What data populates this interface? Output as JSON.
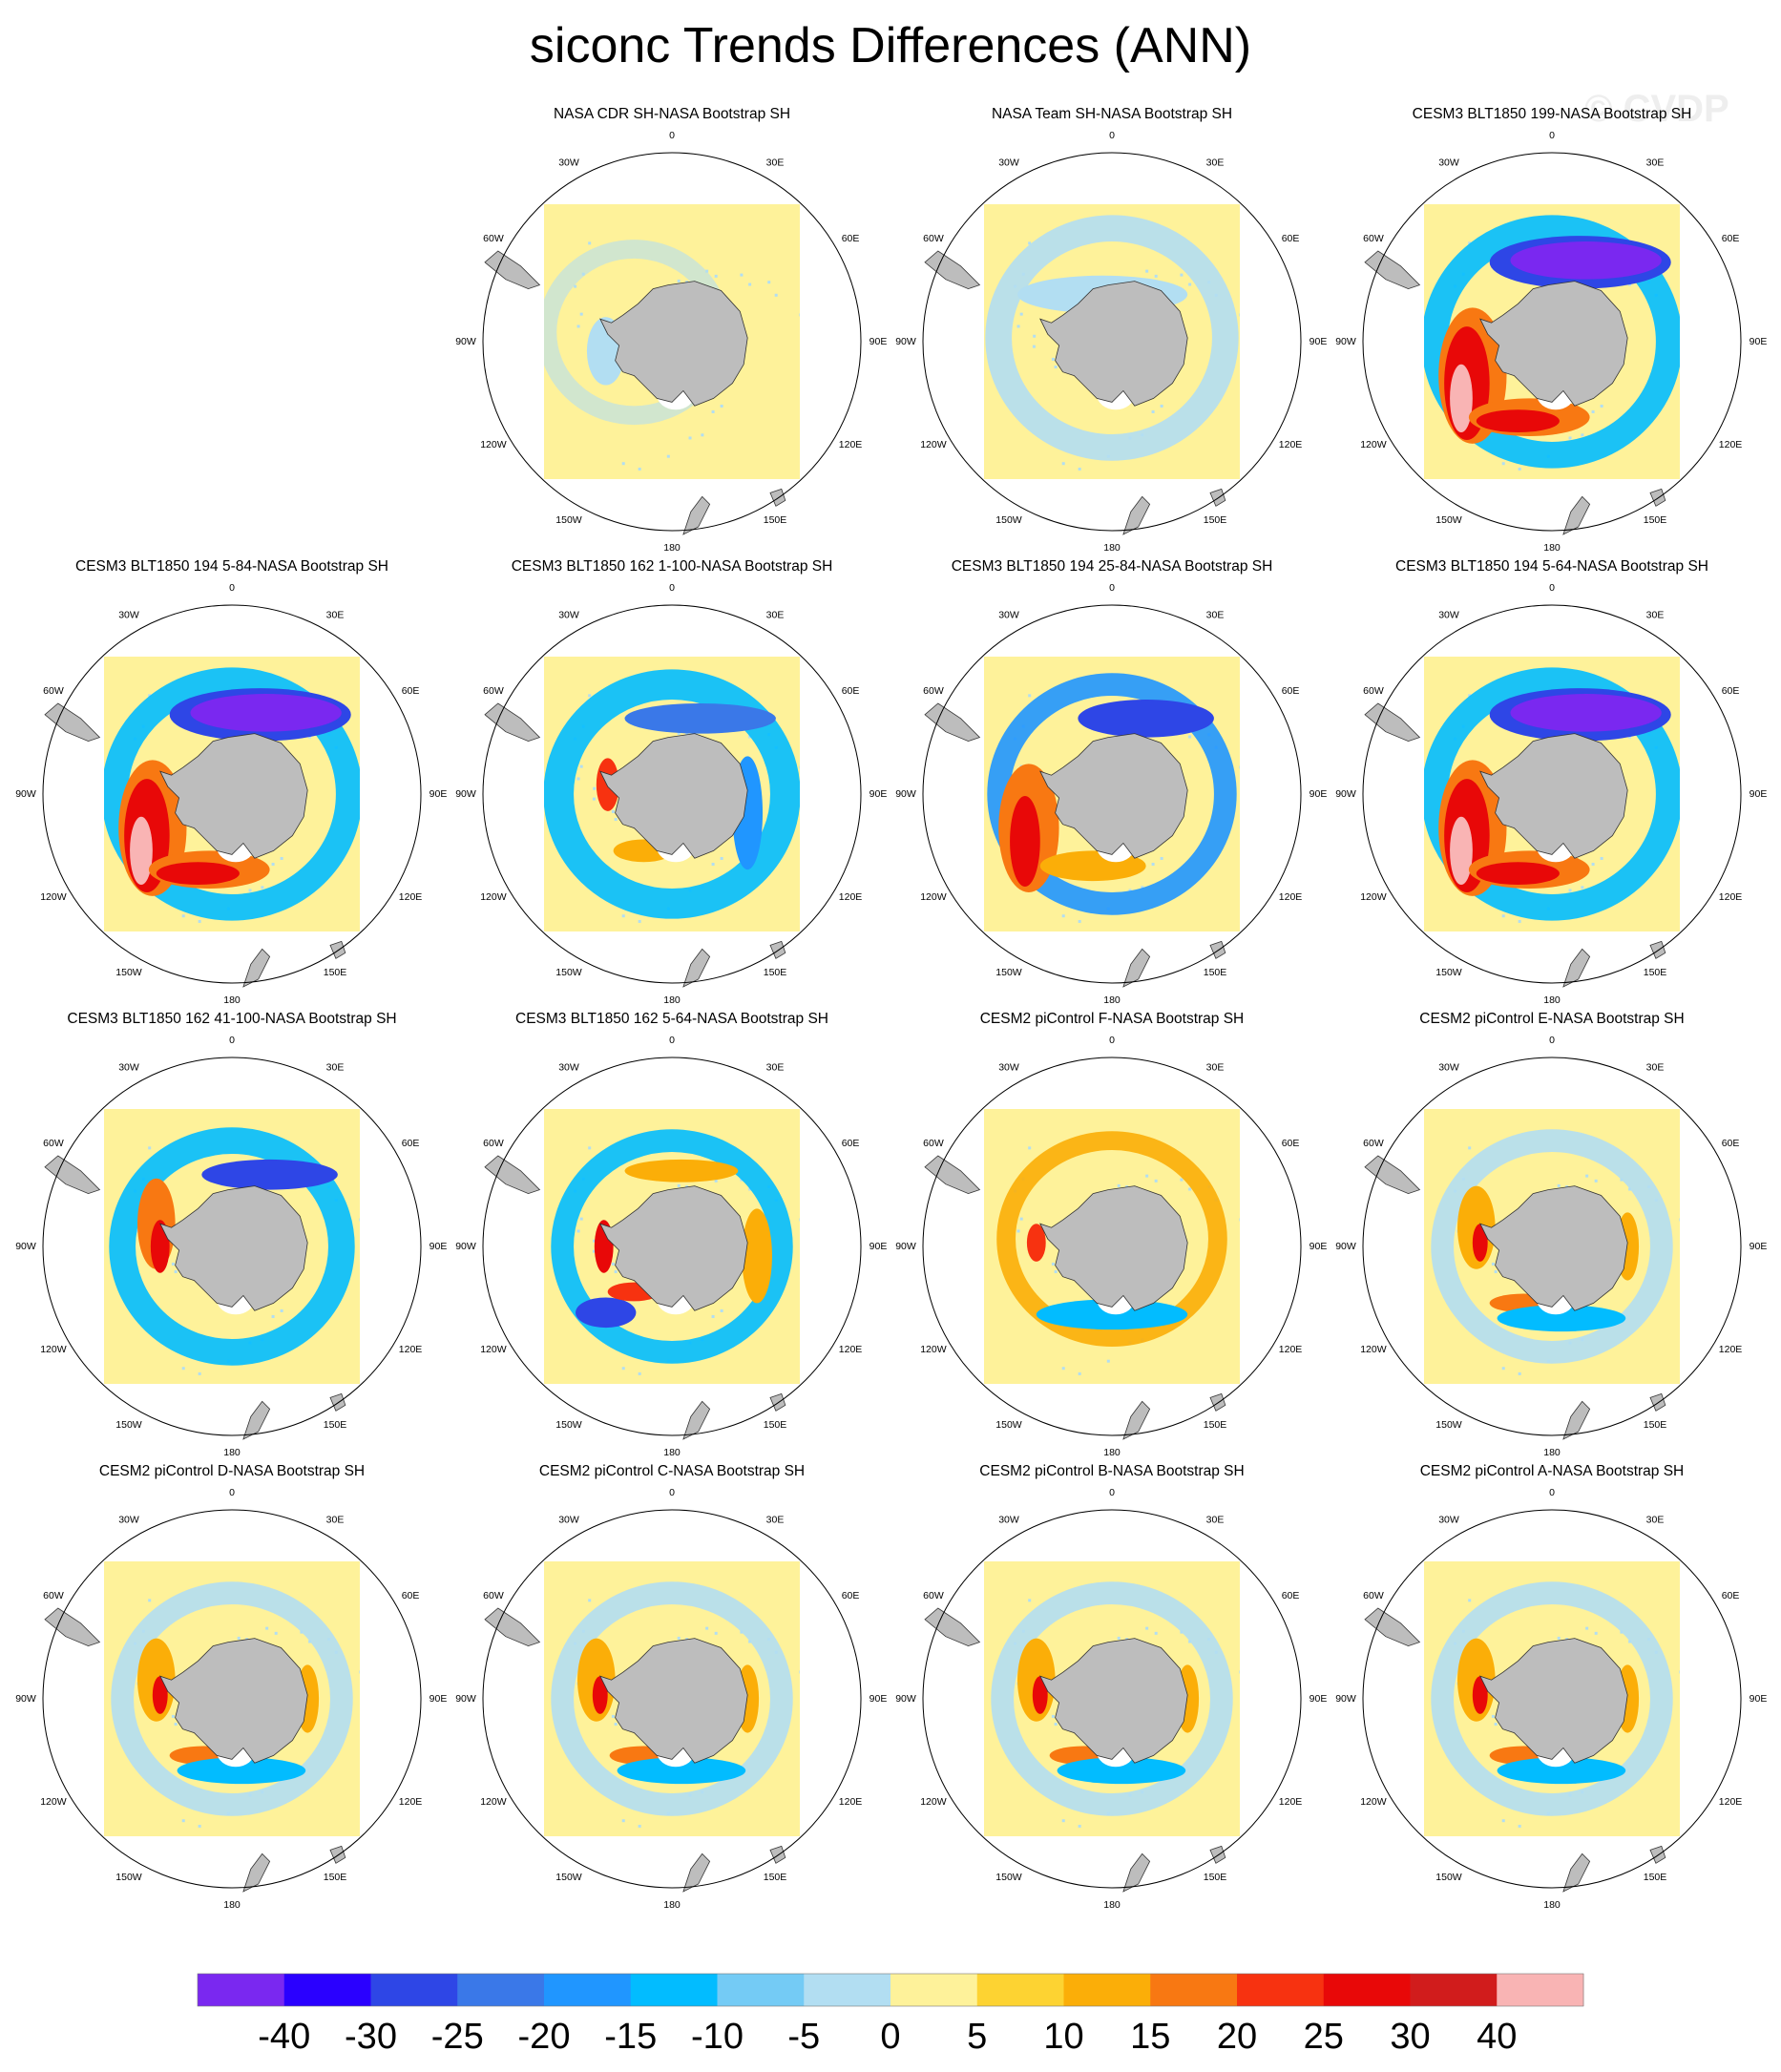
{
  "title": "siconc Trends Differences (ANN)",
  "watermark": "© CVDP",
  "chart_data": {
    "type": "heatmap",
    "projection": "south-polar-stereographic",
    "variable": "siconc",
    "season": "ANN",
    "longitude_labels": [
      "0",
      "30E",
      "60E",
      "90E",
      "120E",
      "150E",
      "180",
      "150W",
      "120W",
      "90W",
      "60W",
      "30W"
    ],
    "colorbar": {
      "labels": [
        "-40",
        "-30",
        "-25",
        "-20",
        "-15",
        "-10",
        "-5",
        "0",
        "5",
        "10",
        "15",
        "20",
        "25",
        "30",
        "40"
      ],
      "colors": [
        "#7a28f0",
        "#2a00ff",
        "#2e46e6",
        "#3a78e8",
        "#2096ff",
        "#02bcff",
        "#74cbf5",
        "#b2def2",
        "#fef29a",
        "#fdd332",
        "#fbae08",
        "#f87812",
        "#f73210",
        "#e80808",
        "#d11c1c",
        "#f9b4b4"
      ],
      "placement": "bottom"
    },
    "panels": [
      {
        "title": "NASA CDR SH-NASA Bootstrap SH",
        "pattern": "faint-blue",
        "empty": false
      },
      {
        "title": "NASA Team SH-NASA Bootstrap SH",
        "pattern": "light-blue-ring",
        "empty": false
      },
      {
        "title": "CESM3 BLT1850 199-NASA Bootstrap SH",
        "pattern": "strong-dipole",
        "empty": false
      },
      {
        "title": "CESM3 BLT1850 194 5-84-NASA Bootstrap SH",
        "pattern": "strong-dipole",
        "empty": false
      },
      {
        "title": "CESM3 BLT1850 162 1-100-NASA Bootstrap SH",
        "pattern": "blue-ring",
        "empty": false
      },
      {
        "title": "CESM3 BLT1850 194 25-84-NASA Bootstrap SH",
        "pattern": "dipole",
        "empty": false
      },
      {
        "title": "CESM3 BLT1850 194 5-64-NASA Bootstrap SH",
        "pattern": "strong-dipole",
        "empty": false
      },
      {
        "title": "CESM3 BLT1850 162 41-100-NASA Bootstrap SH",
        "pattern": "blue-ring-red-west",
        "empty": false
      },
      {
        "title": "CESM3 BLT1850 162 5-64-NASA Bootstrap SH",
        "pattern": "mixed",
        "empty": false
      },
      {
        "title": "CESM2 piControl F-NASA Bootstrap SH",
        "pattern": "orange-ring",
        "empty": false
      },
      {
        "title": "CESM2 piControl E-NASA Bootstrap SH",
        "pattern": "mixed-light",
        "empty": false
      },
      {
        "title": "CESM2 piControl D-NASA Bootstrap SH",
        "pattern": "mixed-light",
        "empty": false
      },
      {
        "title": "CESM2 piControl C-NASA Bootstrap SH",
        "pattern": "mixed-light",
        "empty": false
      },
      {
        "title": "CESM2 piControl B-NASA Bootstrap SH",
        "pattern": "mixed-light",
        "empty": false
      },
      {
        "title": "CESM2 piControl A-NASA Bootstrap SH",
        "pattern": "mixed-light",
        "empty": false
      }
    ]
  }
}
